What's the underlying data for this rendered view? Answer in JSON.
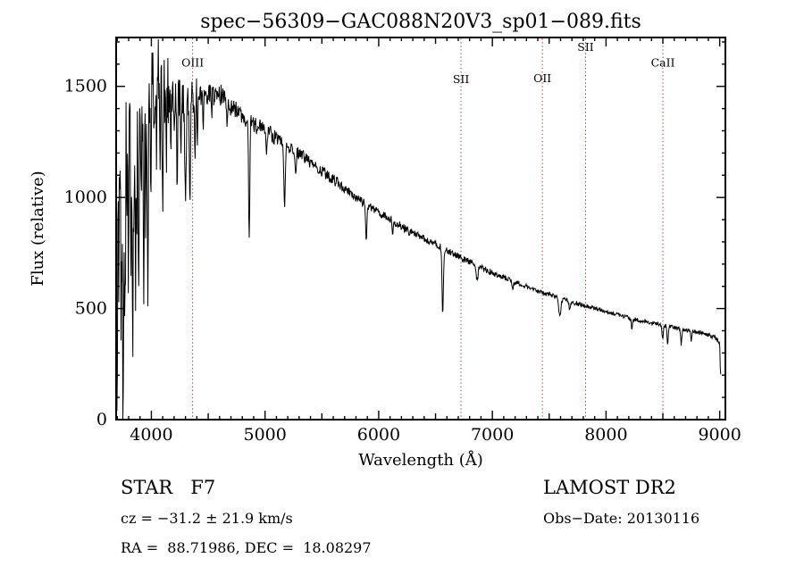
{
  "title": "spec−56309−GAC088N20V3_sp01−089.fits",
  "annotations": {
    "class_line": "STAR   F7",
    "survey": "LAMOST DR2",
    "cz_line": "cz = −31.2 ± 21.9 km/s",
    "obs_date": "Obs−Date: 20130116",
    "radec_line": "RA =  88.71986, DEC =  18.08297"
  },
  "chart_data": {
    "type": "line",
    "title": "spec−56309−GAC088N20V3_sp01−089.fits",
    "xlabel": "Wavelength (Å)",
    "ylabel": "Flux (relative)",
    "xlim": [
      3690,
      9050
    ],
    "ylim": [
      0,
      1720
    ],
    "xticks": [
      4000,
      5000,
      6000,
      7000,
      8000,
      9000
    ],
    "yticks": [
      0,
      500,
      1000,
      1500
    ],
    "grid": false,
    "legend": "none",
    "line_color": "#000000",
    "marker_color": "#aa4444",
    "marker_lines": [
      {
        "label": "OIII",
        "x": 4363,
        "label_flux": 1590
      },
      {
        "label": "SII",
        "x": 6724,
        "label_flux": 1515
      },
      {
        "label": "OII",
        "x": 7440,
        "label_flux": 1520
      },
      {
        "label": "SII",
        "x": 7820,
        "label_flux": 1660
      },
      {
        "label": "CaII",
        "x": 8500,
        "label_flux": 1590
      }
    ],
    "x_start": 3693,
    "x_end": 9012,
    "sample_step": 4,
    "continuum": [
      [
        3693,
        1150
      ],
      [
        3715,
        1320
      ],
      [
        3740,
        1400
      ],
      [
        3770,
        1420
      ],
      [
        3800,
        1430
      ],
      [
        3850,
        1430
      ],
      [
        3900,
        1440
      ],
      [
        3950,
        1460
      ],
      [
        4000,
        1500
      ],
      [
        4040,
        1555
      ],
      [
        4080,
        1540
      ],
      [
        4120,
        1490
      ],
      [
        4180,
        1460
      ],
      [
        4250,
        1440
      ],
      [
        4320,
        1440
      ],
      [
        4400,
        1455
      ],
      [
        4500,
        1470
      ],
      [
        4600,
        1460
      ],
      [
        4700,
        1420
      ],
      [
        4800,
        1370
      ],
      [
        4900,
        1330
      ],
      [
        5000,
        1300
      ],
      [
        5100,
        1270
      ],
      [
        5200,
        1230
      ],
      [
        5300,
        1200
      ],
      [
        5400,
        1160
      ],
      [
        5500,
        1120
      ],
      [
        5600,
        1080
      ],
      [
        5700,
        1040
      ],
      [
        5800,
        1000
      ],
      [
        5900,
        965
      ],
      [
        6000,
        935
      ],
      [
        6100,
        900
      ],
      [
        6200,
        870
      ],
      [
        6300,
        840
      ],
      [
        6400,
        815
      ],
      [
        6500,
        790
      ],
      [
        6600,
        760
      ],
      [
        6700,
        735
      ],
      [
        6800,
        710
      ],
      [
        6900,
        685
      ],
      [
        7000,
        660
      ],
      [
        7100,
        640
      ],
      [
        7200,
        620
      ],
      [
        7300,
        600
      ],
      [
        7400,
        580
      ],
      [
        7500,
        562
      ],
      [
        7600,
        546
      ],
      [
        7700,
        530
      ],
      [
        7800,
        515
      ],
      [
        7900,
        500
      ],
      [
        8000,
        486
      ],
      [
        8100,
        472
      ],
      [
        8200,
        458
      ],
      [
        8300,
        446
      ],
      [
        8400,
        435
      ],
      [
        8500,
        424
      ],
      [
        8600,
        414
      ],
      [
        8700,
        404
      ],
      [
        8800,
        394
      ],
      [
        8900,
        382
      ],
      [
        8960,
        368
      ],
      [
        9000,
        348
      ],
      [
        9012,
        300
      ]
    ],
    "absorptions": [
      [
        3700,
        1250,
        4
      ],
      [
        3712,
        800,
        3
      ],
      [
        3722,
        650,
        3
      ],
      [
        3735,
        950,
        4
      ],
      [
        3750,
        1420,
        5
      ],
      [
        3762,
        700,
        3
      ],
      [
        3771,
        850,
        4
      ],
      [
        3784,
        600,
        3
      ],
      [
        3798,
        950,
        4
      ],
      [
        3820,
        700,
        4
      ],
      [
        3835,
        1080,
        5
      ],
      [
        3848,
        520,
        3
      ],
      [
        3860,
        820,
        4
      ],
      [
        3872,
        600,
        3
      ],
      [
        3889,
        930,
        4
      ],
      [
        3910,
        420,
        3
      ],
      [
        3933,
        960,
        5
      ],
      [
        3950,
        520,
        3
      ],
      [
        3968,
        900,
        5
      ],
      [
        3995,
        420,
        3
      ],
      [
        4023,
        360,
        3
      ],
      [
        4045,
        300,
        3
      ],
      [
        4077,
        360,
        3
      ],
      [
        4101,
        560,
        5
      ],
      [
        4132,
        300,
        3
      ],
      [
        4172,
        260,
        3
      ],
      [
        4200,
        250,
        3
      ],
      [
        4227,
        360,
        4
      ],
      [
        4260,
        210,
        3
      ],
      [
        4300,
        390,
        7
      ],
      [
        4340,
        460,
        5
      ],
      [
        4383,
        300,
        4
      ],
      [
        4405,
        210,
        3
      ],
      [
        4455,
        160,
        3
      ],
      [
        4530,
        130,
        3
      ],
      [
        4668,
        130,
        4
      ],
      [
        4861,
        560,
        5
      ],
      [
        5015,
        110,
        4
      ],
      [
        5172,
        260,
        7
      ],
      [
        5270,
        130,
        5
      ],
      [
        5890,
        150,
        6
      ],
      [
        6122,
        60,
        5
      ],
      [
        6563,
        300,
        6
      ],
      [
        6867,
        70,
        8
      ],
      [
        7180,
        40,
        6
      ],
      [
        7594,
        85,
        9
      ],
      [
        7680,
        40,
        5
      ],
      [
        8227,
        45,
        5
      ],
      [
        8498,
        60,
        5
      ],
      [
        8542,
        85,
        5
      ],
      [
        8662,
        70,
        5
      ],
      [
        8750,
        40,
        4
      ],
      [
        9008,
        120,
        4
      ]
    ],
    "noise_regions": [
      [
        3690,
        3780,
        340
      ],
      [
        3780,
        4150,
        165
      ],
      [
        4150,
        4400,
        90
      ],
      [
        4400,
        4700,
        55
      ],
      [
        4700,
        5100,
        40
      ],
      [
        5100,
        5700,
        28
      ],
      [
        5700,
        6300,
        20
      ],
      [
        6300,
        7000,
        15
      ],
      [
        7000,
        7800,
        11
      ],
      [
        7800,
        8600,
        9
      ],
      [
        8600,
        9012,
        10
      ]
    ]
  }
}
